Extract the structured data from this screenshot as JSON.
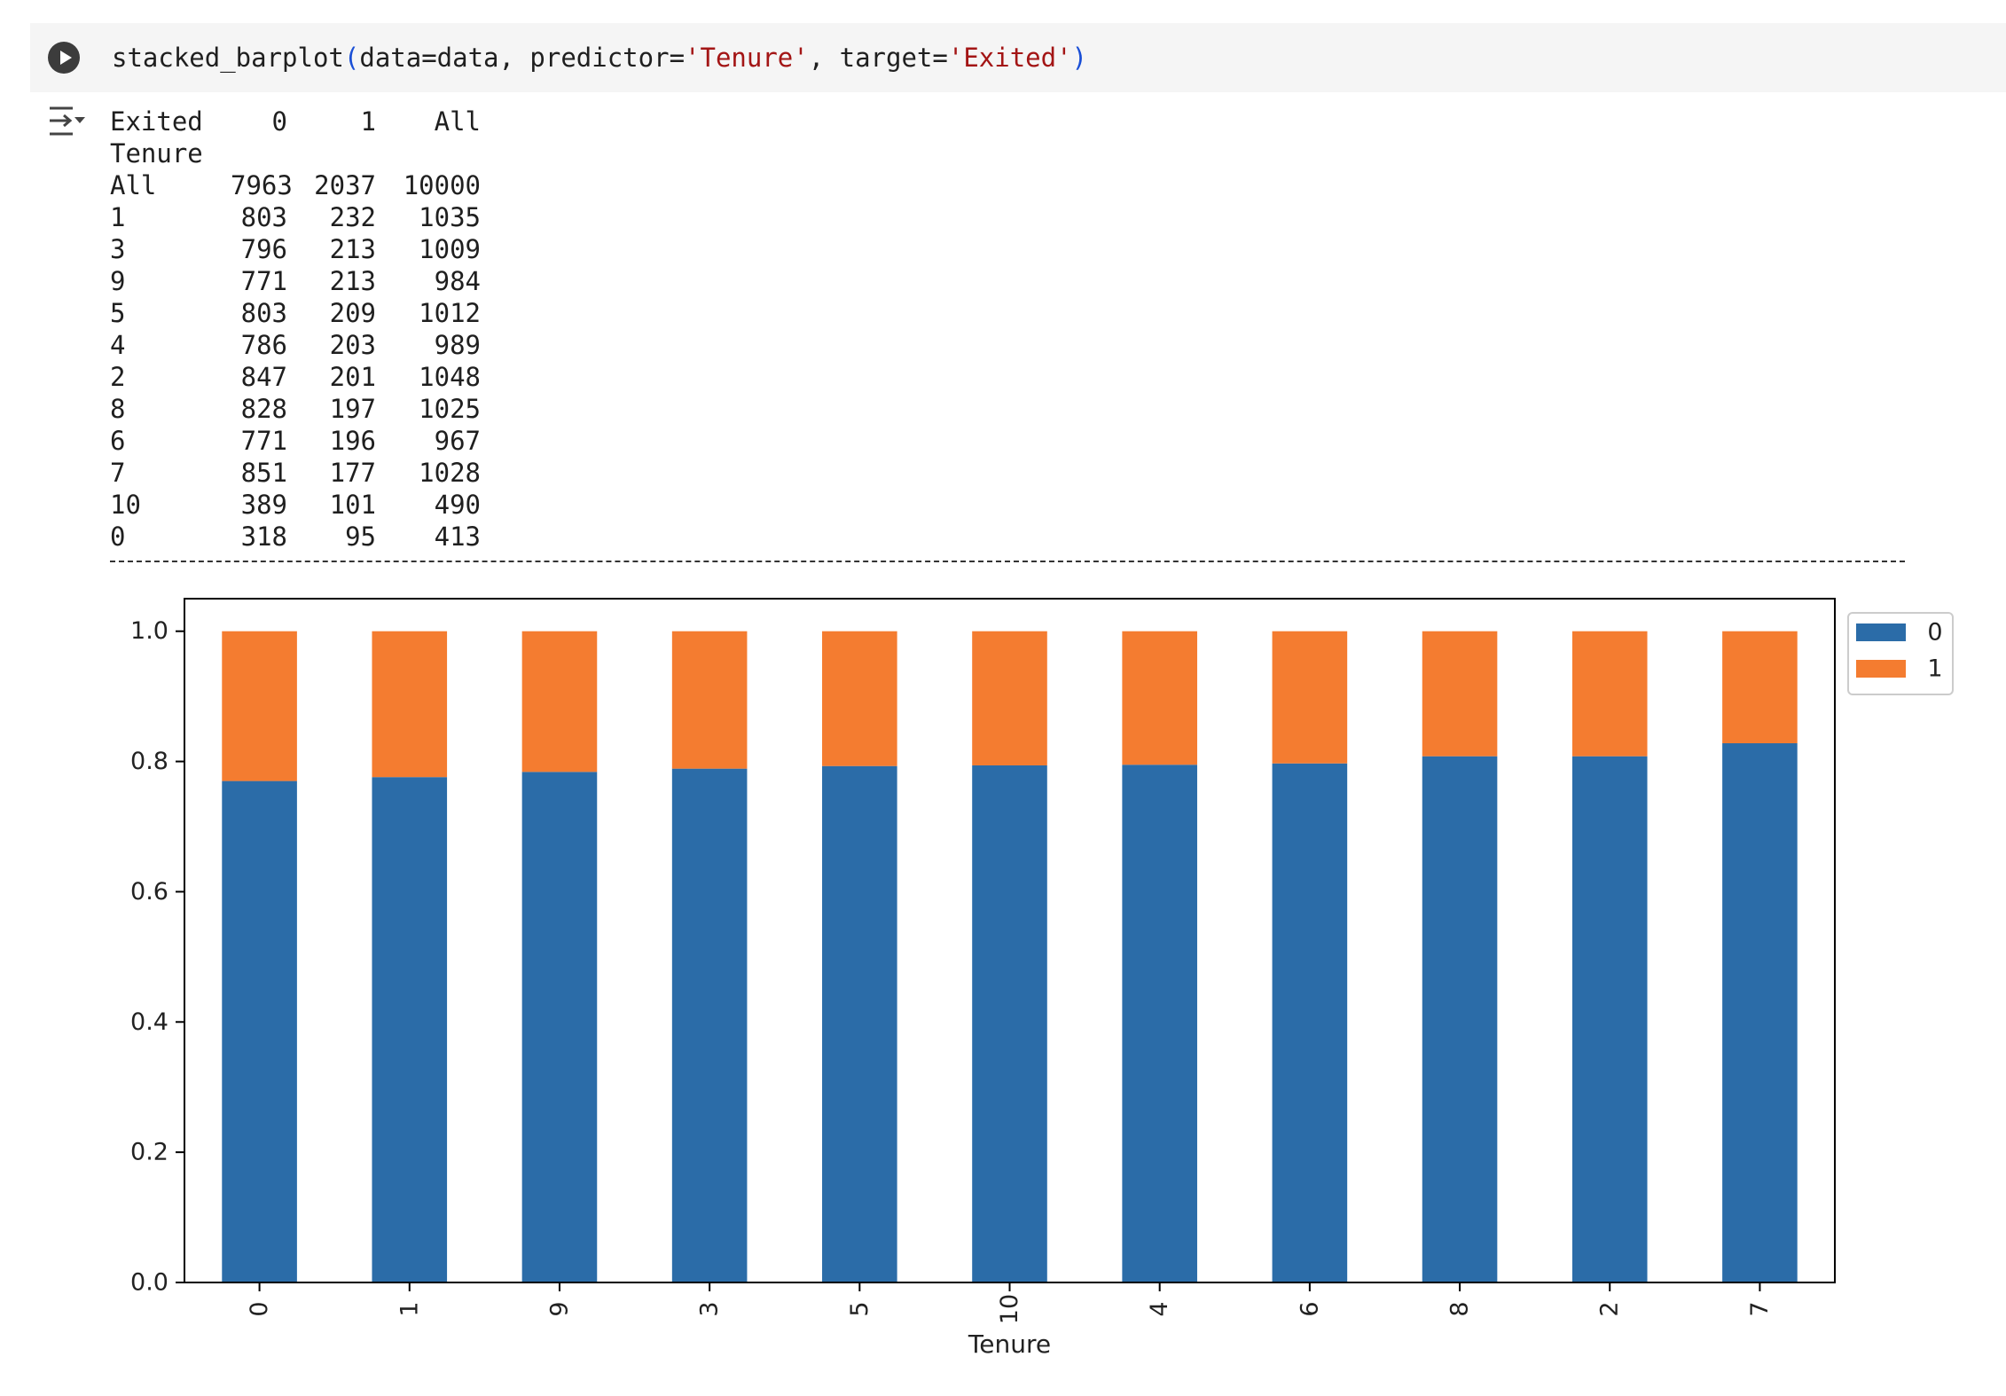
{
  "cell": {
    "code": {
      "fn": "stacked_barplot",
      "open": "(",
      "args1": "data=data, predictor=",
      "str1": "'Tenure'",
      "args2": ", target=",
      "str2": "'Exited'",
      "close": ")"
    },
    "run_icon": "play-circle-icon",
    "output_icon": "output-collapse-icon"
  },
  "table": {
    "header": {
      "index_name": "Exited",
      "c0": "0",
      "c1": "1",
      "all": "All"
    },
    "index_label": "Tenure",
    "rows": [
      {
        "idx": "All",
        "c0": "7963",
        "c1": "2037",
        "all": "10000"
      },
      {
        "idx": "1",
        "c0": "803",
        "c1": "232",
        "all": "1035"
      },
      {
        "idx": "3",
        "c0": "796",
        "c1": "213",
        "all": "1009"
      },
      {
        "idx": "9",
        "c0": "771",
        "c1": "213",
        "all": "984"
      },
      {
        "idx": "5",
        "c0": "803",
        "c1": "209",
        "all": "1012"
      },
      {
        "idx": "4",
        "c0": "786",
        "c1": "203",
        "all": "989"
      },
      {
        "idx": "2",
        "c0": "847",
        "c1": "201",
        "all": "1048"
      },
      {
        "idx": "8",
        "c0": "828",
        "c1": "197",
        "all": "1025"
      },
      {
        "idx": "6",
        "c0": "771",
        "c1": "196",
        "all": "967"
      },
      {
        "idx": "7",
        "c0": "851",
        "c1": "177",
        "all": "1028"
      },
      {
        "idx": "10",
        "c0": "389",
        "c1": "101",
        "all": "490"
      },
      {
        "idx": "0",
        "c0": "318",
        "c1": "95",
        "all": "413"
      }
    ]
  },
  "chart_data": {
    "type": "bar",
    "stacked": true,
    "categories": [
      "0",
      "1",
      "9",
      "3",
      "5",
      "10",
      "4",
      "6",
      "8",
      "2",
      "7"
    ],
    "series": [
      {
        "name": "0",
        "color": "#2b6ca8",
        "values": [
          0.77,
          0.776,
          0.784,
          0.789,
          0.793,
          0.794,
          0.795,
          0.797,
          0.808,
          0.808,
          0.828
        ]
      },
      {
        "name": "1",
        "color": "#f47c30",
        "values": [
          0.23,
          0.224,
          0.216,
          0.211,
          0.207,
          0.206,
          0.205,
          0.203,
          0.192,
          0.192,
          0.172
        ]
      }
    ],
    "xlabel": "Tenure",
    "ylabel": "",
    "ylim": [
      0,
      1.05
    ],
    "yticks": [
      "0.0",
      "0.2",
      "0.4",
      "0.6",
      "0.8",
      "1.0"
    ],
    "grid": false,
    "legend_position": "upper-right-outside"
  }
}
